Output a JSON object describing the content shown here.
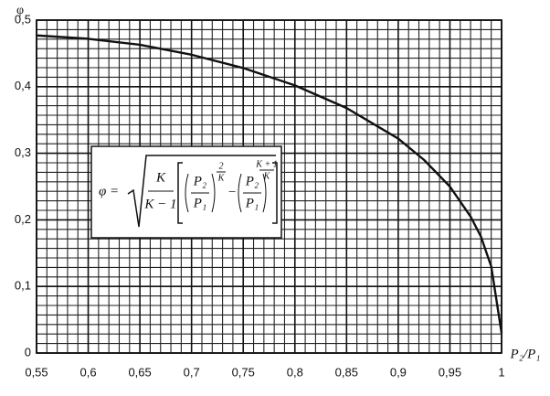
{
  "chart_data": {
    "type": "line",
    "y_label": "φ",
    "x_label": "P₂/P₁",
    "x": [
      0.55,
      0.6,
      0.65,
      0.7,
      0.75,
      0.8,
      0.85,
      0.9,
      0.925,
      0.95,
      0.97,
      0.98,
      0.99,
      1.0
    ],
    "values": [
      0.477,
      0.472,
      0.463,
      0.448,
      0.428,
      0.402,
      0.368,
      0.322,
      0.29,
      0.25,
      0.205,
      0.175,
      0.13,
      0.03
    ],
    "color": "#111111",
    "xlim": [
      0.55,
      1.0
    ],
    "ylim": [
      0,
      0.5
    ],
    "xticks": [
      {
        "value": 0.55,
        "label": "0,55"
      },
      {
        "value": 0.6,
        "label": "0,6"
      },
      {
        "value": 0.65,
        "label": "0,65"
      },
      {
        "value": 0.7,
        "label": "0,7"
      },
      {
        "value": 0.75,
        "label": "0,75"
      },
      {
        "value": 0.8,
        "label": "0,8"
      },
      {
        "value": 0.85,
        "label": "0,85"
      },
      {
        "value": 0.9,
        "label": "0,9"
      },
      {
        "value": 0.95,
        "label": "0,95"
      },
      1
    ],
    "yticks": [
      0,
      {
        "value": 0.1,
        "label": "0,1"
      },
      {
        "value": 0.2,
        "label": "0,2"
      },
      {
        "value": 0.3,
        "label": "0,3"
      },
      {
        "value": 0.4,
        "label": "0,4"
      },
      {
        "value": 0.5,
        "label": "0,5"
      }
    ],
    "grid": true,
    "formula": {
      "lhs": "φ =",
      "coef_num": "K",
      "coef_den": "K − 1",
      "t1_num": "P₂",
      "t1_den": "P₁",
      "t1_exp_num": "2",
      "t1_exp_den": "K",
      "minus": "−",
      "t2_num": "P₂",
      "t2_den": "P₁",
      "t2_exp_num": "K + 1",
      "t2_exp_den": "K"
    }
  }
}
